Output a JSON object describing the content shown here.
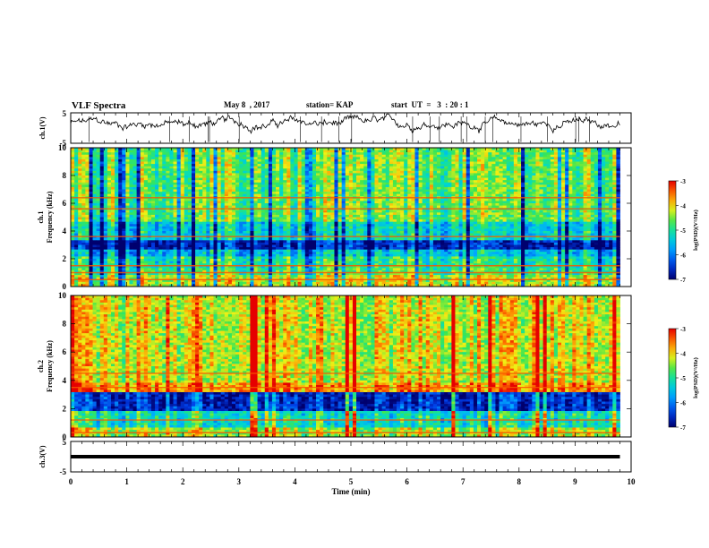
{
  "header": {
    "title": "VLF Spectra",
    "date": "May 8  , 2017",
    "station": "station= KAP",
    "start": "start  UT  =   3  : 20 : 1"
  },
  "chart_data": [
    {
      "type": "line",
      "panel": "ch1-waveform",
      "ylabel": "ch.1(V)",
      "yticks": [
        "5",
        "-5"
      ],
      "ylim": [
        -5,
        5
      ],
      "xlim": [
        0,
        10
      ],
      "description_values": {
        "baseline_v": 1.5,
        "amplitude_v": 1.5,
        "x_end_min": 9.8
      }
    },
    {
      "type": "heatmap",
      "panel": "ch1-spectrogram",
      "ylabel_top": "ch.1",
      "ylabel": "Frequency  (kHz)",
      "yticks": [
        "10",
        "8",
        "6",
        "4",
        "2",
        "0"
      ],
      "ylim": [
        0,
        10
      ],
      "xlim": [
        0,
        9.8
      ],
      "colorbar": {
        "label": "log(PSD)(V²/Hz)",
        "ticks": [
          "-3",
          "-4",
          "-5",
          "-6",
          "-7"
        ],
        "range": [
          -7,
          -3
        ]
      },
      "bands_khz": [
        {
          "from": 0.0,
          "to": 0.8,
          "level": -4.2
        },
        {
          "from": 0.8,
          "to": 1.3,
          "level": -4.8
        },
        {
          "from": 1.3,
          "to": 2.2,
          "level": -5.0
        },
        {
          "from": 2.2,
          "to": 2.6,
          "level": -5.5
        },
        {
          "from": 2.6,
          "to": 3.4,
          "level": -6.6
        },
        {
          "from": 3.4,
          "to": 4.6,
          "level": -5.3
        },
        {
          "from": 4.6,
          "to": 10.0,
          "level": -4.6
        }
      ],
      "lines_khz": [
        0.5,
        1.0,
        1.5,
        3.6,
        5.6,
        6.4
      ]
    },
    {
      "type": "heatmap",
      "panel": "ch2-spectrogram",
      "ylabel_top": "ch.2",
      "ylabel": "Frequency  (kHz)",
      "yticks": [
        "10",
        "8",
        "6",
        "4",
        "2",
        "0"
      ],
      "ylim": [
        0,
        10
      ],
      "xlim": [
        0,
        9.8
      ],
      "colorbar": {
        "label": "log(PSD)(V²/Hz)",
        "ticks": [
          "-3",
          "-4",
          "-5",
          "-6",
          "-7"
        ],
        "range": [
          -7,
          -3
        ]
      },
      "bands_khz": [
        {
          "from": 0.0,
          "to": 0.7,
          "level": -4.3
        },
        {
          "from": 0.7,
          "to": 1.9,
          "level": -5.1
        },
        {
          "from": 1.9,
          "to": 3.2,
          "level": -6.5
        },
        {
          "from": 3.2,
          "to": 3.8,
          "level": -3.6
        },
        {
          "from": 3.8,
          "to": 10.0,
          "level": -4.1
        }
      ],
      "lines_khz": [
        0.3,
        1.2,
        3.5,
        4.5
      ]
    },
    {
      "type": "line",
      "panel": "ch3-waveform",
      "ylabel": "ch.3(V)",
      "yticks": [
        "5",
        "-5"
      ],
      "ylim": [
        -5,
        5
      ],
      "xlim": [
        0,
        10
      ],
      "xlabel": "Time  (min)",
      "xticks": [
        "0",
        "1",
        "2",
        "3",
        "4",
        "5",
        "6",
        "7",
        "8",
        "9",
        "10"
      ],
      "constant_value_v": 0,
      "x_end_min": 9.8
    }
  ]
}
